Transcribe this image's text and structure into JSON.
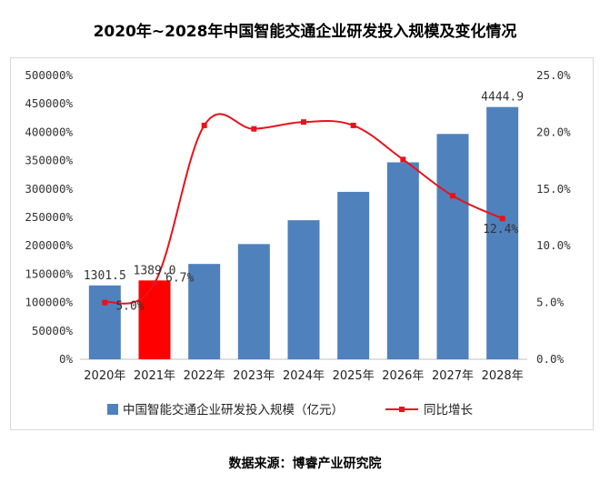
{
  "chart_data": {
    "type": "bar",
    "title": "2020年~2028年中国智能交通企业研发投入规模及变化情况",
    "categories": [
      "2020年",
      "2021年",
      "2022年",
      "2023年",
      "2024年",
      "2025年",
      "2026年",
      "2027年",
      "2028年"
    ],
    "series": [
      {
        "name": "中国智能交通企业研发投入规模（亿元）",
        "type": "bar",
        "axis": "left",
        "color": "#4f81bd",
        "highlight_color": "#ff0000",
        "highlight_index": 1,
        "values": [
          1301.5,
          1389.0,
          1680,
          2030,
          2450,
          2950,
          3470,
          3970,
          4444.9
        ],
        "value_labels": [
          "1301.5",
          "1389.0",
          "",
          "",
          "",
          "",
          "",
          "",
          "4444.9"
        ]
      },
      {
        "name": "同比增长",
        "type": "line",
        "axis": "right",
        "color": "#e8121a",
        "values": [
          5.0,
          6.7,
          20.6,
          20.3,
          20.9,
          20.6,
          17.6,
          14.4,
          12.4
        ],
        "value_labels": [
          "5.0%",
          "6.7%",
          "",
          "",
          "",
          "",
          "",
          "",
          "12.4%"
        ]
      }
    ],
    "y_left": {
      "min": 0,
      "max": 5000,
      "step": 500,
      "tick_labels": [
        "0%",
        "50000%",
        "100000%",
        "150000%",
        "200000%",
        "250000%",
        "300000%",
        "350000%",
        "400000%",
        "450000%",
        "500000%"
      ]
    },
    "y_right": {
      "min": 0,
      "max": 25,
      "step": 5,
      "tick_labels": [
        "0.0%",
        "5.0%",
        "10.0%",
        "15.0%",
        "20.0%",
        "25.0%"
      ]
    },
    "grid": false,
    "legend_position": "bottom"
  },
  "source": "数据来源：博睿产业研究院"
}
